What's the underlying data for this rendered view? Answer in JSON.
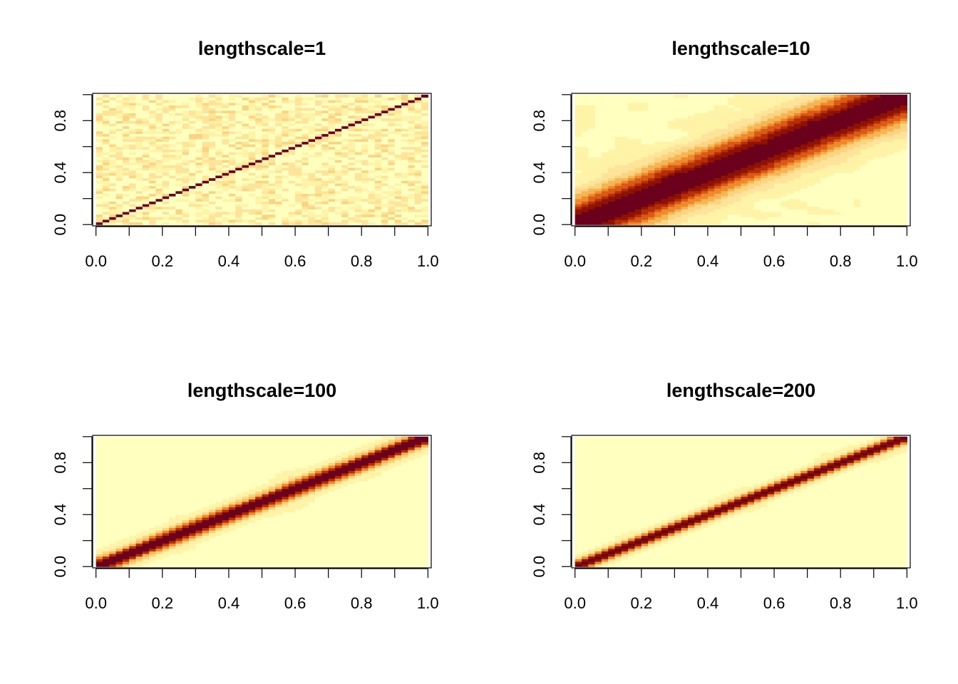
{
  "chart_data": [
    {
      "type": "heatmap",
      "title": "lengthscale=1",
      "lengthscale": 1,
      "xlim": [
        0,
        1
      ],
      "ylim": [
        0,
        1
      ],
      "x_ticks": [
        "0.0",
        "0.2",
        "0.4",
        "0.6",
        "0.8",
        "1.0"
      ],
      "y_ticks": [
        "0.0",
        "0.4",
        "0.8"
      ],
      "grid": false,
      "legend": "none"
    },
    {
      "type": "heatmap",
      "title": "lengthscale=10",
      "lengthscale": 10,
      "xlim": [
        0,
        1
      ],
      "ylim": [
        0,
        1
      ],
      "x_ticks": [
        "0.0",
        "0.2",
        "0.4",
        "0.6",
        "0.8",
        "1.0"
      ],
      "y_ticks": [
        "0.0",
        "0.4",
        "0.8"
      ],
      "grid": false,
      "legend": "none"
    },
    {
      "type": "heatmap",
      "title": "lengthscale=100",
      "lengthscale": 100,
      "xlim": [
        0,
        1
      ],
      "ylim": [
        0,
        1
      ],
      "x_ticks": [
        "0.0",
        "0.2",
        "0.4",
        "0.6",
        "0.8",
        "1.0"
      ],
      "y_ticks": [
        "0.0",
        "0.4",
        "0.8"
      ],
      "grid": false,
      "legend": "none"
    },
    {
      "type": "heatmap",
      "title": "lengthscale=200",
      "lengthscale": 200,
      "xlim": [
        0,
        1
      ],
      "ylim": [
        0,
        1
      ],
      "x_ticks": [
        "0.0",
        "0.2",
        "0.4",
        "0.6",
        "0.8",
        "1.0"
      ],
      "y_ticks": [
        "0.0",
        "0.4",
        "0.8"
      ],
      "grid": false,
      "legend": "none"
    }
  ],
  "colors": [
    "#67001F",
    "#B30000",
    "#D7301F",
    "#EF6548",
    "#FC8D59",
    "#FDBB84",
    "#FDD49E",
    "#FEE8C8",
    "#FFF7C0",
    "#FFFFBF"
  ],
  "palette": [
    "#FFFFC0",
    "#FFF3A8",
    "#FDE49A",
    "#FBD482",
    "#F6B554",
    "#EE8A2C",
    "#D95A16",
    "#B52E07",
    "#8E1304",
    "#6A001C"
  ]
}
